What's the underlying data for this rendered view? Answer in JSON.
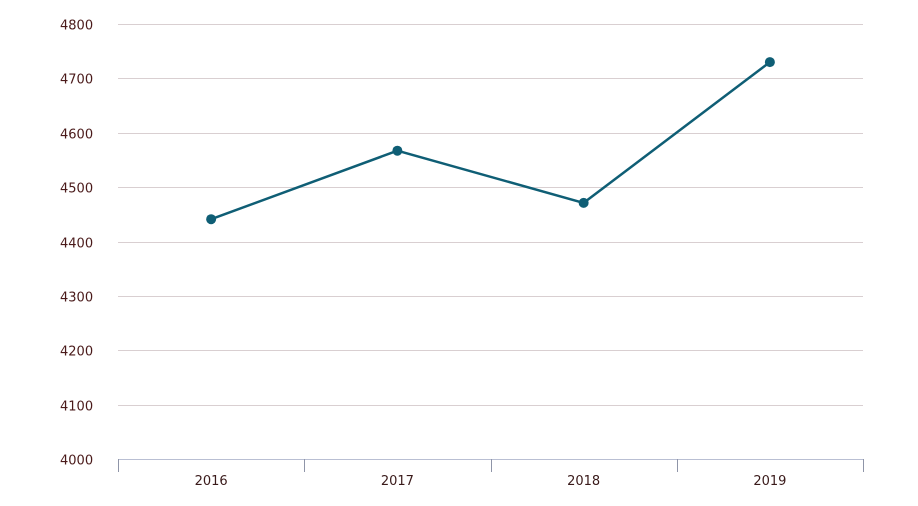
{
  "chart_data": {
    "type": "line",
    "categories": [
      "2016",
      "2017",
      "2018",
      "2019"
    ],
    "series": [
      {
        "values": [
          4441,
          4567,
          4471,
          4730
        ]
      }
    ],
    "ylim": [
      4000,
      4800
    ],
    "yticks": [
      "4000",
      "4100",
      "4200",
      "4300",
      "4400",
      "4500",
      "4600",
      "4700",
      "4800"
    ],
    "grid": true,
    "legend": "none",
    "colors": {
      "line": "#0f5e75",
      "grid": "#d9cfd1",
      "axis": "#b9bfd3",
      "label": "#4a1a1a"
    }
  }
}
